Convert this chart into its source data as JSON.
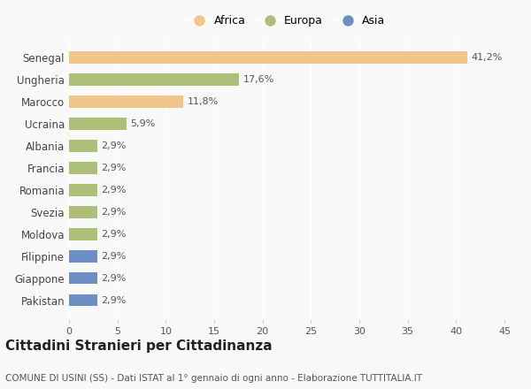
{
  "categories": [
    "Senegal",
    "Ungheria",
    "Marocco",
    "Ucraina",
    "Albania",
    "Francia",
    "Romania",
    "Svezia",
    "Moldova",
    "Filippine",
    "Giappone",
    "Pakistan"
  ],
  "values": [
    41.2,
    17.6,
    11.8,
    5.9,
    2.9,
    2.9,
    2.9,
    2.9,
    2.9,
    2.9,
    2.9,
    2.9
  ],
  "labels": [
    "41,2%",
    "17,6%",
    "11,8%",
    "5,9%",
    "2,9%",
    "2,9%",
    "2,9%",
    "2,9%",
    "2,9%",
    "2,9%",
    "2,9%",
    "2,9%"
  ],
  "colors": [
    "#F2C68A",
    "#ADBF78",
    "#F2C68A",
    "#ADBF78",
    "#ADBF78",
    "#ADBF78",
    "#ADBF78",
    "#ADBF78",
    "#ADBF78",
    "#6E8FC4",
    "#6E8FC4",
    "#6E8FC4"
  ],
  "legend_labels": [
    "Africa",
    "Europa",
    "Asia"
  ],
  "legend_colors": [
    "#F2C68A",
    "#ADBF78",
    "#6E8FC4"
  ],
  "xlim": [
    0,
    45
  ],
  "xticks": [
    0,
    5,
    10,
    15,
    20,
    25,
    30,
    35,
    40,
    45
  ],
  "title": "Cittadini Stranieri per Cittadinanza",
  "subtitle": "COMUNE DI USINI (SS) - Dati ISTAT al 1° gennaio di ogni anno - Elaborazione TUTTITALIA.IT",
  "background_color": "#f9f9f9",
  "bar_height": 0.55,
  "label_fontsize": 8,
  "title_fontsize": 11,
  "subtitle_fontsize": 7.5,
  "ytick_fontsize": 8.5,
  "xtick_fontsize": 8
}
